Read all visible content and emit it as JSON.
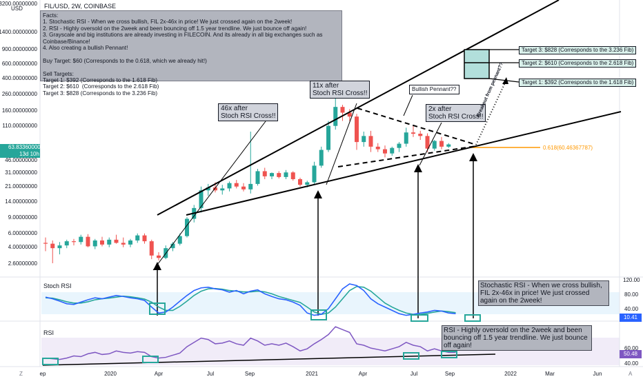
{
  "header": {
    "symbol_title": "FIL/USD, 2W, COINBASE",
    "currency": "USD"
  },
  "price_axis": {
    "ticks": [
      "3200.00000000",
      "1400.00000000",
      "900.00000000",
      "600.00000000",
      "400.00000000",
      "260.00000000",
      "160.00000000",
      "110.00000000",
      "46.00000000",
      "31.00000000",
      "21.00000000",
      "14.00000000",
      "9.00000000",
      "6.00000000",
      "4.00000000",
      "2.60000000"
    ],
    "current_price": "63.83360000",
    "countdown": "13d 10h"
  },
  "time_axis": {
    "labels": [
      "ep",
      "2020",
      "Apr",
      "Jul",
      "Sep",
      "2021",
      "Apr",
      "Jul",
      "Sep",
      "2022",
      "Mar",
      "Jun"
    ]
  },
  "facts_note": {
    "text": "Facts:\n1. Stochastic RSI - When we cross bullish, FIL 2x-46x in price! We just crossed again on the 2week!\n2. RSI - Highly oversold on the 2week and been bouncing off 1.5 year trendline. We just bounce off again!\n3. Grayscale and big institutions are already investing in FILECOIN. And its already in all big exchanges such as Coinbase/Binance!\n4. Also creating a bullish Pennant!\n\nBuy Target: $60 (Corresponds to the 0.618, which we already hit!)\n\nSell Targets:\nTarget 1: $392 (Corresponds to the 1.618 Fib)\nTarget 2: $610  (Corresponds to the 2.618 Fib)\nTarget 3: $828 (Corresponds to the 3.236 Fib)"
  },
  "callouts": {
    "x46": "46x after\nStoch RSI Cross!!",
    "x11": "11x after\nStoch RSI Cross!!",
    "x2": "2x after\nStoch RSI Cross!!",
    "pennant": "Bullish Pennant??",
    "breakout": "Breakout from pennant??"
  },
  "targets": {
    "t3": "Target 3: $828 (Corresponds to the 3.236 Fib)",
    "t2": "Target 2: $610  (Corresponds to the 2.618 Fib)",
    "t1": "Target 1: $392 (Corresponds to the 1.618 Fib)"
  },
  "fib_label": "0.618(60.46367787)",
  "stoch": {
    "title": "Stoch RSI",
    "ticks": [
      "120.00",
      "80.00",
      "40.00"
    ],
    "value": "10.41",
    "note": "Stochastic RSI - When we cross bullish, FIL 2x-46x in price! We just crossed again on the 2week!"
  },
  "rsi": {
    "title": "RSI",
    "ticks": [
      "60.00",
      "40.00"
    ],
    "value": "50.48",
    "note": "RSI - Highly oversold on the 2week and been bouncing off 1.5 year trendline. We just bounce off again!"
  },
  "colors": {
    "up": "#26a69a",
    "down": "#ef5350",
    "stoch_k": "#2962ff",
    "stoch_d": "#26a69a",
    "rsi": "#7e57c2",
    "fib": "#ff9800"
  },
  "candles": [
    {
      "o": 4.5,
      "h": 5.2,
      "l": 3.6,
      "c": 4.4
    },
    {
      "o": 4.4,
      "h": 4.8,
      "l": 2.6,
      "c": 3.9
    },
    {
      "o": 3.9,
      "h": 4.6,
      "l": 3.3,
      "c": 4.2
    },
    {
      "o": 4.2,
      "h": 4.9,
      "l": 3.9,
      "c": 4.7
    },
    {
      "o": 4.7,
      "h": 5.0,
      "l": 4.2,
      "c": 4.6
    },
    {
      "o": 4.6,
      "h": 5.6,
      "l": 4.3,
      "c": 5.3
    },
    {
      "o": 5.3,
      "h": 5.7,
      "l": 4.0,
      "c": 4.1
    },
    {
      "o": 4.1,
      "h": 5.0,
      "l": 3.8,
      "c": 4.8
    },
    {
      "o": 4.8,
      "h": 5.3,
      "l": 4.1,
      "c": 4.3
    },
    {
      "o": 4.3,
      "h": 5.2,
      "l": 4.0,
      "c": 4.9
    },
    {
      "o": 4.9,
      "h": 5.6,
      "l": 4.4,
      "c": 4.5
    },
    {
      "o": 4.5,
      "h": 5.2,
      "l": 4.0,
      "c": 4.3
    },
    {
      "o": 4.3,
      "h": 5.0,
      "l": 4.0,
      "c": 4.8
    },
    {
      "o": 4.8,
      "h": 5.8,
      "l": 4.5,
      "c": 5.5
    },
    {
      "o": 5.5,
      "h": 5.8,
      "l": 4.4,
      "c": 4.7
    },
    {
      "o": 4.7,
      "h": 4.9,
      "l": 2.9,
      "c": 3.2
    },
    {
      "o": 3.2,
      "h": 3.5,
      "l": 2.8,
      "c": 3.0
    },
    {
      "o": 3.0,
      "h": 4.2,
      "l": 2.9,
      "c": 3.9
    },
    {
      "o": 3.9,
      "h": 4.6,
      "l": 3.6,
      "c": 4.4
    },
    {
      "o": 4.4,
      "h": 5.8,
      "l": 4.2,
      "c": 5.4
    },
    {
      "o": 5.4,
      "h": 9.0,
      "l": 5.2,
      "c": 8.6
    },
    {
      "o": 8.6,
      "h": 12.5,
      "l": 7.8,
      "c": 11.5
    },
    {
      "o": 11.5,
      "h": 20.5,
      "l": 10.2,
      "c": 18.5
    },
    {
      "o": 18.5,
      "h": 22.0,
      "l": 16.0,
      "c": 20.0
    },
    {
      "o": 20.0,
      "h": 23.0,
      "l": 17.5,
      "c": 18.5
    },
    {
      "o": 18.5,
      "h": 21.5,
      "l": 16.5,
      "c": 19.5
    },
    {
      "o": 19.5,
      "h": 23.5,
      "l": 18.0,
      "c": 22.5
    },
    {
      "o": 22.5,
      "h": 24.5,
      "l": 19.5,
      "c": 20.5
    },
    {
      "o": 20.5,
      "h": 22.5,
      "l": 18.0,
      "c": 19.0
    },
    {
      "o": 19.0,
      "h": 90.0,
      "l": 17.0,
      "c": 22.0
    },
    {
      "o": 22.0,
      "h": 33.0,
      "l": 21.0,
      "c": 31.0
    },
    {
      "o": 31.0,
      "h": 34.0,
      "l": 25.0,
      "c": 27.0
    },
    {
      "o": 27.0,
      "h": 30.0,
      "l": 25.0,
      "c": 29.5
    },
    {
      "o": 29.5,
      "h": 31.0,
      "l": 25.5,
      "c": 26.5
    },
    {
      "o": 26.5,
      "h": 32.0,
      "l": 25.0,
      "c": 30.0
    },
    {
      "o": 30.0,
      "h": 31.0,
      "l": 24.0,
      "c": 25.0
    },
    {
      "o": 25.0,
      "h": 26.0,
      "l": 20.5,
      "c": 21.5
    },
    {
      "o": 21.5,
      "h": 24.0,
      "l": 20.0,
      "c": 23.0
    },
    {
      "o": 23.0,
      "h": 40.0,
      "l": 22.0,
      "c": 36.0
    },
    {
      "o": 36.0,
      "h": 60.0,
      "l": 34.0,
      "c": 55.0
    },
    {
      "o": 55.0,
      "h": 120.0,
      "l": 52.0,
      "c": 105.0
    },
    {
      "o": 105.0,
      "h": 235.0,
      "l": 95.0,
      "c": 175.0
    },
    {
      "o": 175.0,
      "h": 185.0,
      "l": 120.0,
      "c": 150.0
    },
    {
      "o": 150.0,
      "h": 165.0,
      "l": 120.0,
      "c": 135.0
    },
    {
      "o": 135.0,
      "h": 145.0,
      "l": 55.0,
      "c": 68.0
    },
    {
      "o": 68.0,
      "h": 90.0,
      "l": 60.0,
      "c": 80.0
    },
    {
      "o": 80.0,
      "h": 92.0,
      "l": 52.0,
      "c": 60.0
    },
    {
      "o": 60.0,
      "h": 66.0,
      "l": 52.0,
      "c": 56.0
    },
    {
      "o": 56.0,
      "h": 62.0,
      "l": 45.0,
      "c": 50.0
    },
    {
      "o": 50.0,
      "h": 60.0,
      "l": 47.0,
      "c": 58.0
    },
    {
      "o": 58.0,
      "h": 68.0,
      "l": 52.0,
      "c": 65.0
    },
    {
      "o": 65.0,
      "h": 100.0,
      "l": 60.0,
      "c": 88.0
    },
    {
      "o": 88.0,
      "h": 105.0,
      "l": 78.0,
      "c": 85.0
    },
    {
      "o": 85.0,
      "h": 92.0,
      "l": 72.0,
      "c": 80.0
    },
    {
      "o": 80.0,
      "h": 86.0,
      "l": 52.0,
      "c": 57.0
    },
    {
      "o": 57.0,
      "h": 72.0,
      "l": 54.0,
      "c": 70.0
    },
    {
      "o": 70.0,
      "h": 78.0,
      "l": 56.0,
      "c": 60.0
    },
    {
      "o": 60.0,
      "h": 66.0,
      "l": 58.0,
      "c": 63.8
    }
  ],
  "stoch_k": [
    60,
    55,
    48,
    40,
    38,
    45,
    52,
    58,
    55,
    60,
    65,
    62,
    58,
    55,
    50,
    30,
    12,
    15,
    30,
    48,
    65,
    80,
    88,
    90,
    85,
    82,
    75,
    80,
    70,
    78,
    82,
    70,
    62,
    55,
    52,
    45,
    35,
    12,
    5,
    8,
    25,
    55,
    85,
    100,
    95,
    80,
    55,
    40,
    30,
    20,
    10,
    5,
    8,
    12,
    15,
    20,
    18,
    12,
    10
  ],
  "stoch_d": [
    58,
    57,
    52,
    46,
    42,
    42,
    46,
    52,
    55,
    57,
    60,
    63,
    61,
    58,
    54,
    45,
    30,
    20,
    20,
    32,
    48,
    65,
    78,
    85,
    86,
    84,
    80,
    78,
    76,
    76,
    78,
    76,
    70,
    62,
    56,
    50,
    44,
    30,
    15,
    8,
    12,
    30,
    55,
    80,
    92,
    90,
    78,
    60,
    42,
    30,
    20,
    12,
    8,
    8,
    11,
    15,
    18,
    16,
    13
  ],
  "rsi_vals": [
    42,
    41,
    40,
    42,
    45,
    44,
    48,
    50,
    47,
    48,
    52,
    50,
    49,
    51,
    50,
    44,
    42,
    43,
    46,
    49,
    58,
    64,
    70,
    68,
    62,
    63,
    66,
    62,
    60,
    70,
    66,
    60,
    62,
    60,
    63,
    58,
    52,
    55,
    62,
    68,
    75,
    86,
    82,
    78,
    62,
    60,
    56,
    54,
    52,
    55,
    58,
    64,
    60,
    58,
    52,
    55,
    52,
    50,
    50
  ]
}
